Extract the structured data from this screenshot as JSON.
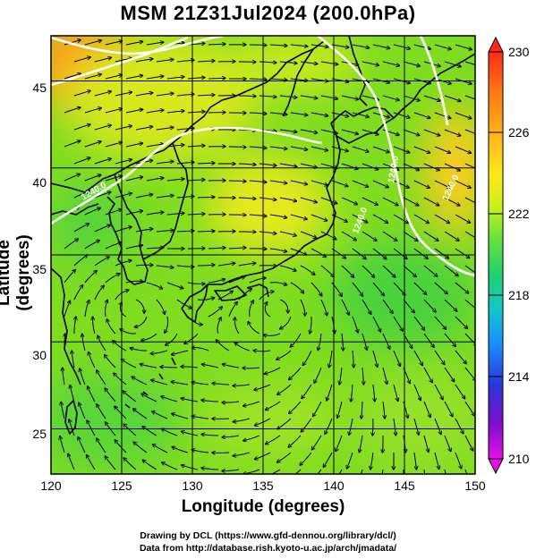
{
  "title": "MSM 21Z31Jul2024 (200.0hPa)",
  "axes": {
    "xlabel": "Longitude (degrees)",
    "ylabel": "Latitude  (degrees)",
    "x_ticks": [
      "120",
      "125",
      "130",
      "135",
      "140",
      "145",
      "150"
    ],
    "y_ticks": [
      "25",
      "30",
      "35",
      "40",
      "45"
    ]
  },
  "colorbar": {
    "labels": [
      "230",
      "226",
      "222",
      "218",
      "214",
      "210"
    ],
    "colors": [
      "#ff2a1a",
      "#ff7a12",
      "#ffb21a",
      "#ffe81a",
      "#c8f01a",
      "#66e23a",
      "#1fd070",
      "#12c8c8",
      "#1a8cff",
      "#2a34d8",
      "#7a10c8",
      "#e810e8"
    ]
  },
  "contour_labels": [
    "1240.0",
    "1240.0",
    "1240.0",
    "1240.0"
  ],
  "credits": {
    "line1": "Drawing by DCL (https://www.gfd-dennou.org/library/dcl/)",
    "line2": "Data from http://database.rish.kyoto-u.ac.jp/arch/jmadata/"
  },
  "chart_data": {
    "type": "heatmap",
    "title": "MSM 21Z31Jul2024 (200.0hPa)",
    "xlabel": "Longitude (degrees)",
    "ylabel": "Latitude  (degrees)",
    "xlim": [
      120,
      150
    ],
    "ylim": [
      22.4,
      47.6
    ],
    "clim": [
      210,
      230
    ],
    "colorbar_ticks": [
      230,
      226,
      222,
      218,
      214,
      210
    ],
    "grid": true,
    "overlays": [
      "streamlines",
      "coastlines",
      "geopotential contours"
    ],
    "contour_value": 1240.0,
    "vortices": [
      {
        "lon": 125.5,
        "lat": 32.0,
        "sense": "anticyclonic"
      },
      {
        "lon": 136.0,
        "lat": 32.0,
        "sense": "anticyclonic"
      }
    ]
  }
}
